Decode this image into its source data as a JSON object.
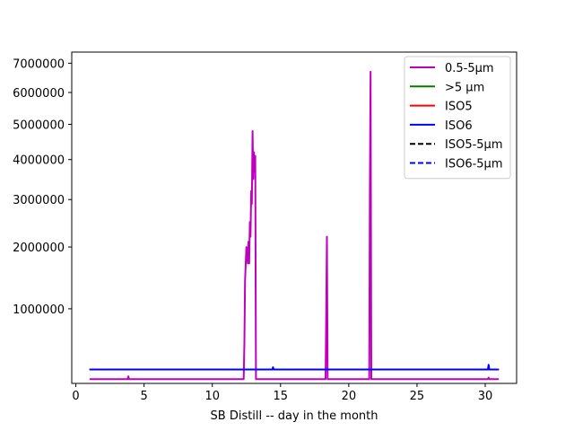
{
  "chart_data": {
    "type": "line",
    "title": "",
    "xlabel": "SB Distill -- day in the month",
    "ylabel": "",
    "xlim": [
      -0.3,
      32.3
    ],
    "ylim": [
      250000,
      7400000
    ],
    "yscale": "sqrt",
    "xticks": [
      0,
      5,
      10,
      15,
      20,
      25,
      30
    ],
    "yticks": [
      1000000,
      2000000,
      3000000,
      4000000,
      5000000,
      6000000,
      7000000
    ],
    "ytick_labels": [
      "1000000",
      "2000000",
      "3000000",
      "4000000",
      "5000000",
      "6000000",
      "7000000"
    ],
    "grid": false,
    "legend_position": "top-right",
    "series": [
      {
        "name": "0.5-5µm",
        "color": "#bf00bf",
        "dash": "solid",
        "x": [
          1.0,
          3.8,
          3.85,
          3.9,
          12.3,
          12.35,
          12.4,
          12.5,
          12.6,
          12.65,
          12.7,
          12.75,
          12.8,
          12.85,
          12.9,
          12.95,
          13.0,
          13.05,
          13.1,
          13.15,
          13.2,
          13.25,
          13.3,
          13.35,
          13.4,
          14.5,
          14.55,
          14.6,
          18.3,
          18.35,
          18.4,
          18.45,
          18.5,
          21.5,
          21.55,
          21.6,
          21.65,
          21.7,
          30.2,
          30.25,
          30.3,
          30.35,
          30.4,
          31.0
        ],
        "y": [
          280000,
          280000,
          300000,
          280000,
          280000,
          600000,
          1400000,
          2000000,
          1700000,
          2100000,
          1700000,
          2500000,
          2200000,
          3200000,
          2900000,
          4800000,
          3500000,
          4200000,
          3700000,
          4100000,
          280000,
          280000,
          280000,
          280000,
          280000,
          280000,
          280000,
          280000,
          280000,
          1000000,
          2200000,
          280000,
          280000,
          280000,
          3200000,
          6700000,
          280000,
          280000,
          280000,
          290000,
          280000,
          280000,
          280000,
          280000
        ]
      },
      {
        "name": ">5 µm",
        "color": "#008000",
        "dash": "solid",
        "x": [
          1.0,
          31.0
        ],
        "y": [
          352000,
          352000
        ]
      },
      {
        "name": "ISO5",
        "color": "#ff0000",
        "dash": "solid",
        "x": [
          1.0,
          31.0
        ],
        "y": [
          352000,
          352000
        ]
      },
      {
        "name": "ISO6",
        "color": "#0000ff",
        "dash": "solid",
        "x": [
          1.0,
          14.4,
          14.45,
          14.5,
          14.55,
          14.6,
          30.2,
          30.25,
          30.3,
          30.35,
          30.4,
          31.0
        ],
        "y": [
          352000,
          352000,
          370000,
          352000,
          352000,
          352000,
          352000,
          390000,
          352000,
          352000,
          352000,
          352000
        ]
      },
      {
        "name": "ISO5-5µm",
        "color": "#000000",
        "dash": "dashed",
        "x": [],
        "y": []
      },
      {
        "name": "ISO6-5µm",
        "color": "#0000ff",
        "dash": "dashed",
        "x": [],
        "y": []
      }
    ]
  }
}
